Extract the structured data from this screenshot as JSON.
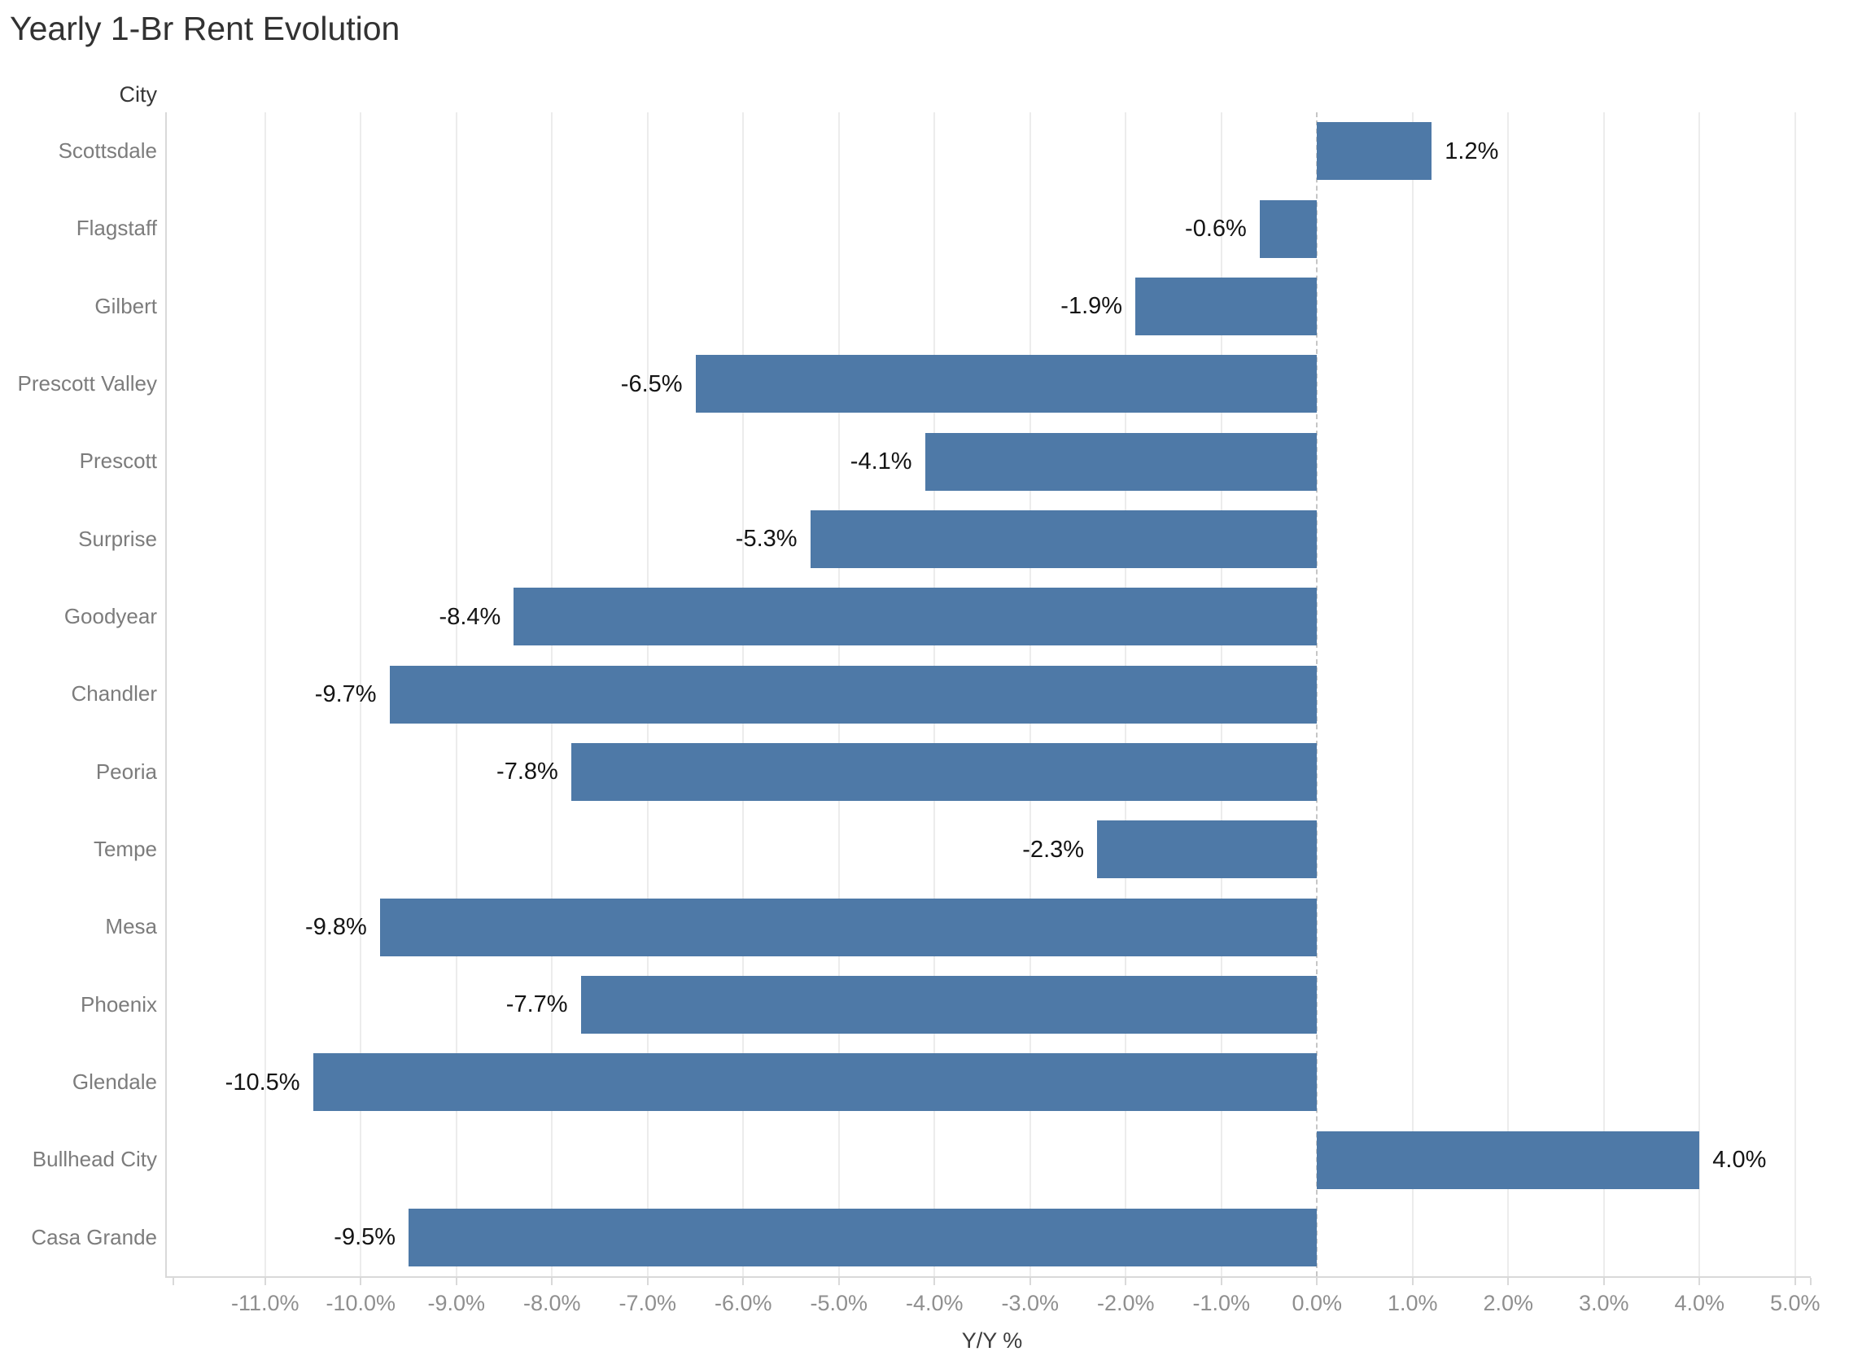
{
  "title": "Yearly 1-Br Rent Evolution",
  "chart_data": {
    "type": "bar",
    "orientation": "horizontal",
    "title": "Yearly 1-Br Rent Evolution",
    "xlabel": "Y/Y %",
    "ylabel": "City",
    "categories": [
      "Scottsdale",
      "Flagstaff",
      "Gilbert",
      "Prescott Valley",
      "Prescott",
      "Surprise",
      "Goodyear",
      "Chandler",
      "Peoria",
      "Tempe",
      "Mesa",
      "Phoenix",
      "Glendale",
      "Bullhead City",
      "Casa Grande"
    ],
    "values": [
      1.2,
      -0.6,
      -1.9,
      -6.5,
      -4.1,
      -5.3,
      -8.4,
      -9.7,
      -7.8,
      -2.3,
      -9.8,
      -7.7,
      -10.5,
      4.0,
      -9.5
    ],
    "value_labels": [
      "1.2%",
      "-0.6%",
      "-1.9%",
      "-6.5%",
      "-4.1%",
      "-5.3%",
      "-8.4%",
      "-9.7%",
      "-7.8%",
      "-2.3%",
      "-9.8%",
      "-7.7%",
      "-10.5%",
      "4.0%",
      "-9.5%"
    ],
    "xlim": [
      -11.96,
      5.17
    ],
    "x_ticks": [
      -11,
      -10,
      -9,
      -8,
      -7,
      -6,
      -5,
      -4,
      -3,
      -2,
      -1,
      0,
      1,
      2,
      3,
      4,
      5
    ],
    "x_tick_labels": [
      "-11.0%",
      "-10.0%",
      "-9.0%",
      "-8.0%",
      "-7.0%",
      "-6.0%",
      "-5.0%",
      "-4.0%",
      "-3.0%",
      "-2.0%",
      "-1.0%",
      "0.0%",
      "1.0%",
      "2.0%",
      "3.0%",
      "4.0%",
      "5.0%"
    ],
    "grid": "vertical-gridlines-on",
    "zero_line": "dashed",
    "legend_position": "none",
    "bar_color": "#4e79a7"
  }
}
